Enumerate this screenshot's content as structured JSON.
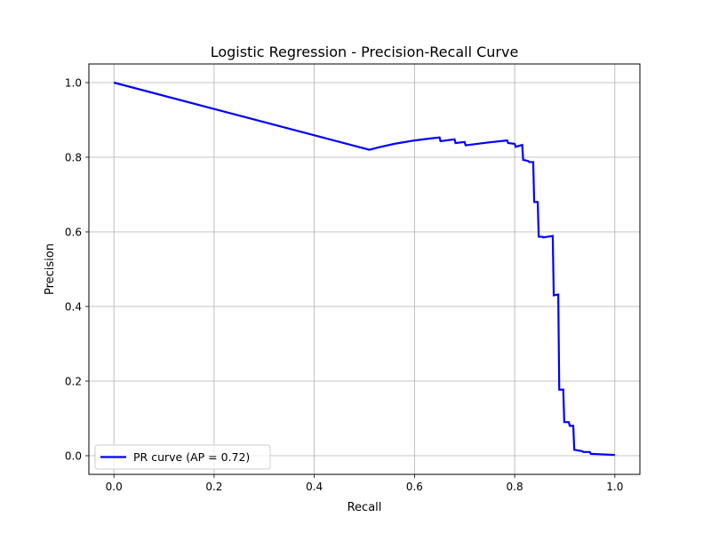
{
  "chart_data": {
    "type": "line",
    "title": "Logistic Regression - Precision-Recall Curve",
    "xlabel": "Recall",
    "ylabel": "Precision",
    "xlim": [
      -0.05,
      1.05
    ],
    "ylim": [
      -0.05,
      1.05
    ],
    "x_ticks": [
      0.0,
      0.2,
      0.4,
      0.6,
      0.8,
      1.0
    ],
    "x_tick_labels": [
      "0.0",
      "0.2",
      "0.4",
      "0.6",
      "0.8",
      "1.0"
    ],
    "y_ticks": [
      0.0,
      0.2,
      0.4,
      0.6,
      0.8,
      1.0
    ],
    "y_tick_labels": [
      "0.0",
      "0.2",
      "0.4",
      "0.6",
      "0.8",
      "1.0"
    ],
    "grid": true,
    "legend_position": "lower-left",
    "series": [
      {
        "name": "PR curve (AP = 0.72)",
        "color": "#0000ff",
        "x": [
          0.0,
          0.51,
          0.53,
          0.56,
          0.6,
          0.63,
          0.65,
          0.652,
          0.68,
          0.682,
          0.7,
          0.702,
          0.72,
          0.75,
          0.785,
          0.787,
          0.8,
          0.802,
          0.815,
          0.817,
          0.827,
          0.829,
          0.837,
          0.839,
          0.846,
          0.848,
          0.855,
          0.857,
          0.866,
          0.876,
          0.878,
          0.887,
          0.889,
          0.897,
          0.899,
          0.908,
          0.91,
          0.917,
          0.919,
          0.935,
          0.937,
          0.95,
          0.952,
          0.97,
          1.0
        ],
        "y": [
          1.0,
          0.82,
          0.827,
          0.836,
          0.845,
          0.85,
          0.853,
          0.843,
          0.848,
          0.838,
          0.841,
          0.832,
          0.835,
          0.84,
          0.845,
          0.838,
          0.836,
          0.828,
          0.833,
          0.793,
          0.79,
          0.787,
          0.787,
          0.68,
          0.68,
          0.587,
          0.587,
          0.585,
          0.587,
          0.589,
          0.43,
          0.432,
          0.177,
          0.177,
          0.09,
          0.09,
          0.08,
          0.08,
          0.016,
          0.012,
          0.01,
          0.01,
          0.005,
          0.004,
          0.002
        ]
      }
    ]
  }
}
